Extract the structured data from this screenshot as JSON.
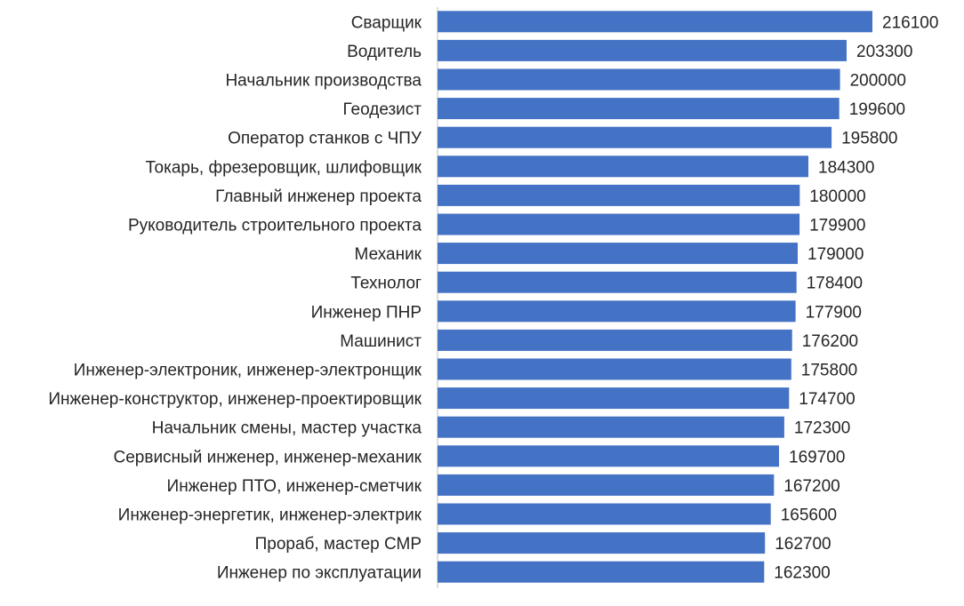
{
  "colors": {
    "bar": "#4472c4",
    "text": "#262626",
    "axis": "#bfbfbf",
    "background": "#ffffff"
  },
  "chart_data": {
    "type": "bar",
    "orientation": "horizontal",
    "title": "",
    "xlabel": "",
    "ylabel": "",
    "grid": false,
    "legend": "none",
    "data_labels": true,
    "xlim": [
      0,
      220000
    ],
    "categories": [
      "Сварщик",
      "Водитель",
      "Начальник производства",
      "Геодезист",
      "Оператор станков с ЧПУ",
      "Токарь, фрезеровщик, шлифовщик",
      "Главный  инженер проекта",
      "Руководитель строительного проекта",
      "Механик",
      "Технолог",
      "Инженер ПНР",
      "Машинист",
      "Инженер-электроник, инженер-электронщик",
      "Инженер-конструктор, инженер-проектировщик",
      "Начальник смены, мастер участка",
      "Сервисный инженер, инженер-механик",
      "Инженер ПТО, инженер-сметчик",
      "Инженер-энергетик, инженер-электрик",
      "Прораб, мастер СМР",
      "Инженер по эксплуатации"
    ],
    "values": [
      216100,
      203300,
      200000,
      199600,
      195800,
      184300,
      180000,
      179900,
      179000,
      178400,
      177900,
      176200,
      175800,
      174700,
      172300,
      169700,
      167200,
      165600,
      162700,
      162300
    ]
  }
}
